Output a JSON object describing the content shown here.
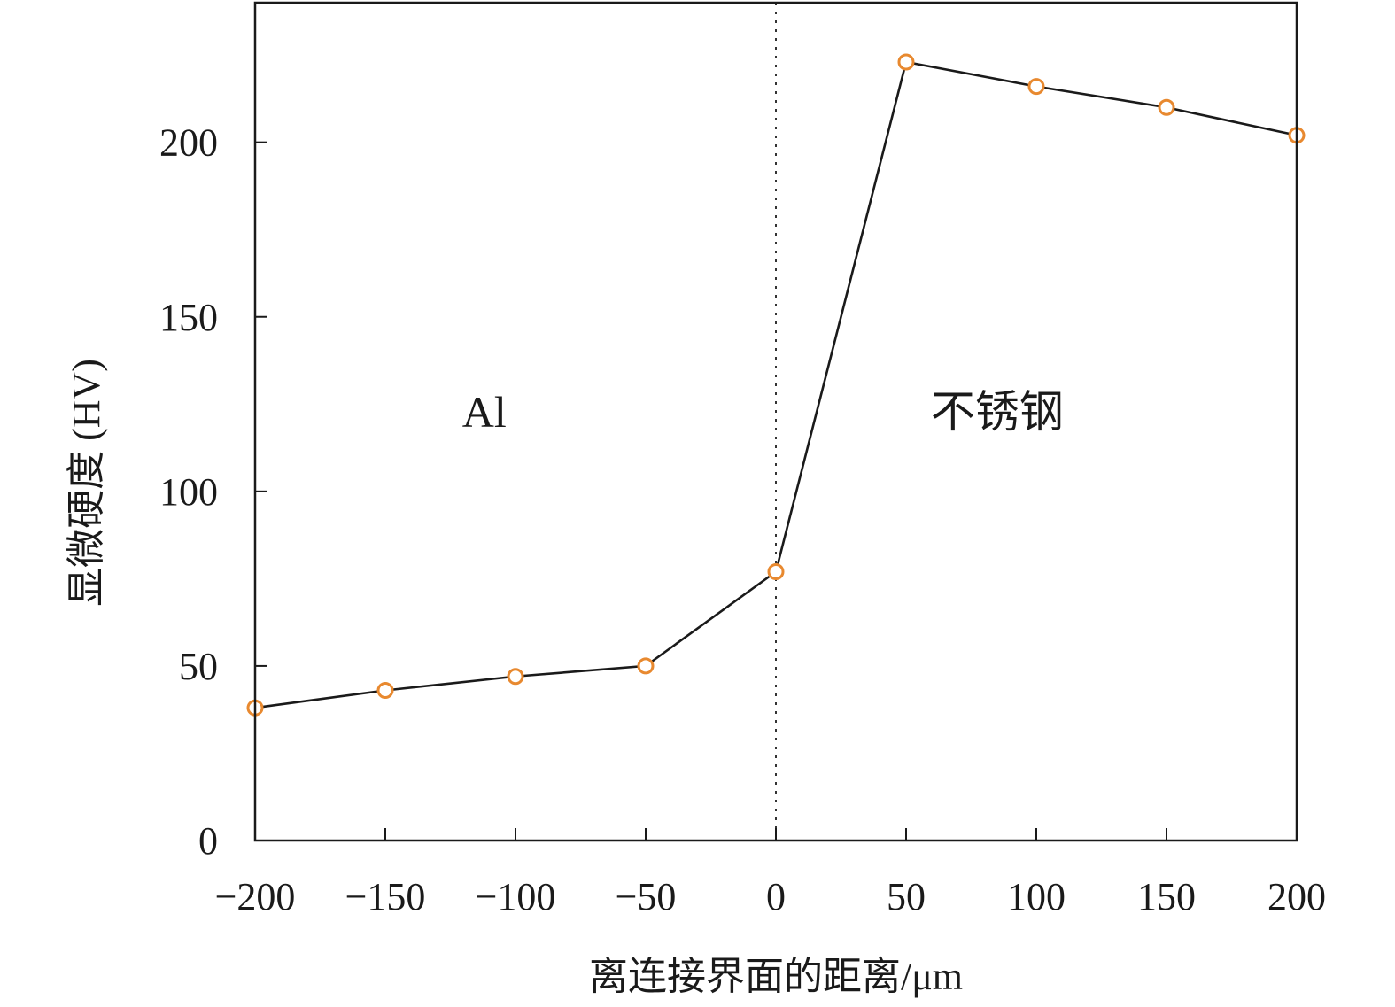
{
  "chart_data": {
    "type": "line",
    "title": "",
    "xlabel": "离连接界面的距离/μm",
    "ylabel": "显微硬度 (HV)",
    "xlim": [
      -200,
      200
    ],
    "ylim": [
      0,
      240
    ],
    "xticks": [
      -200,
      -150,
      -100,
      -50,
      0,
      50,
      100,
      150,
      200
    ],
    "xtick_labels": [
      "−200",
      "−150",
      "−100",
      "−50",
      "0",
      "50",
      "100",
      "150",
      "200"
    ],
    "yticks": [
      0,
      50,
      100,
      150,
      200
    ],
    "ytick_labels": [
      "0",
      "50",
      "100",
      "150",
      "200"
    ],
    "grid": false,
    "legend": "none",
    "series": [
      {
        "x": [
          -200,
          -150,
          -100,
          -50,
          0,
          50,
          100,
          150,
          200
        ],
        "y": [
          38,
          43,
          47,
          50,
          77,
          223,
          216,
          210,
          202
        ]
      }
    ],
    "interface_line_x": 0,
    "annotations": [
      {
        "text": "Al",
        "x": -112,
        "y": 123
      },
      {
        "text": "不锈钢",
        "x": 85,
        "y": 123
      }
    ],
    "colors": {
      "line": "#1a1a1a",
      "marker_edge": "#e8892f",
      "marker_fill": "#ffffff",
      "axes": "#1a1a1a",
      "interface": "#333333"
    }
  }
}
